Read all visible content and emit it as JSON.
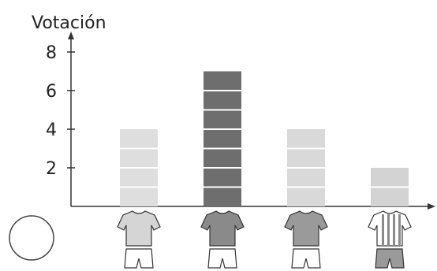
{
  "chart_data": {
    "type": "bar",
    "ylabel": "Votación",
    "ylim": [
      0,
      8
    ],
    "y_ticks": [
      2,
      4,
      6,
      8
    ],
    "y_tick_labels": [
      "2",
      "4",
      "6",
      "8"
    ],
    "categories": [
      "light-gray-jersey",
      "dark-gray-jersey",
      "medium-gray-jersey",
      "striped-jersey"
    ],
    "values": [
      4,
      7,
      4,
      2
    ],
    "grid": false,
    "bar_segments_per_unit": 1
  },
  "colors": {
    "bars": [
      "#dedede",
      "#6e6e6e",
      "#d9d9d9",
      "#d3d3d3"
    ],
    "segment_lines": "#ffffff",
    "axis": "#333333",
    "jersey_shirts": [
      "#d5d5d5",
      "#8a8a8a",
      "#9a9a9a",
      "#ffffff"
    ],
    "jersey_stripes": "#8a8a8a",
    "shorts": [
      "#ffffff",
      "#ffffff",
      "#ffffff",
      "#9a9a9a"
    ]
  },
  "icons": [
    "shirt-icon-light",
    "shirt-icon-dark",
    "shirt-icon-medium",
    "shirt-icon-striped"
  ]
}
